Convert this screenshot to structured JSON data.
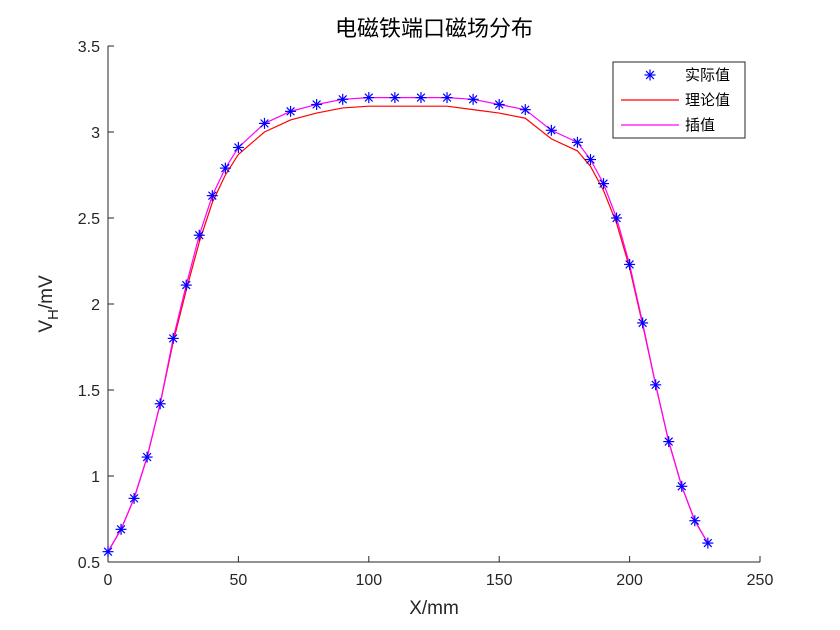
{
  "chart_data": {
    "type": "line",
    "title": "电磁铁端口磁场分布",
    "xlabel": "X/mm",
    "ylabel": "V",
    "ylabel_sub": "H",
    "ylabel_suffix": "/mV",
    "xlim": [
      0,
      250
    ],
    "ylim": [
      0.5,
      3.5
    ],
    "xticks": [
      0,
      50,
      100,
      150,
      200,
      250
    ],
    "yticks": [
      0.5,
      1,
      1.5,
      2,
      2.5,
      3,
      3.5
    ],
    "xtick_labels": [
      "0",
      "50",
      "100",
      "150",
      "200",
      "250"
    ],
    "ytick_labels": [
      "0.5",
      "1",
      "1.5",
      "2",
      "2.5",
      "3",
      "3.5"
    ],
    "grid": false,
    "legend_position": "top-right",
    "series": [
      {
        "name": "实际值",
        "style": "markers",
        "marker": "asterisk",
        "color": "#0000ff",
        "x": [
          0,
          5,
          10,
          15,
          20,
          25,
          30,
          35,
          40,
          45,
          50,
          60,
          70,
          80,
          90,
          100,
          110,
          120,
          130,
          140,
          150,
          160,
          170,
          180,
          185,
          190,
          195,
          200,
          205,
          210,
          215,
          220,
          225,
          230
        ],
        "y": [
          0.56,
          0.69,
          0.87,
          1.11,
          1.42,
          1.8,
          2.11,
          2.4,
          2.63,
          2.79,
          2.91,
          3.05,
          3.12,
          3.16,
          3.19,
          3.2,
          3.2,
          3.2,
          3.2,
          3.19,
          3.16,
          3.13,
          3.01,
          2.94,
          2.84,
          2.7,
          2.5,
          2.23,
          1.89,
          1.53,
          1.2,
          0.94,
          0.74,
          0.61
        ]
      },
      {
        "name": "理论值",
        "style": "line",
        "color": "#ff0000",
        "x": [
          0,
          5,
          10,
          15,
          20,
          25,
          30,
          35,
          40,
          45,
          50,
          60,
          70,
          80,
          90,
          100,
          110,
          120,
          130,
          140,
          150,
          160,
          170,
          180,
          185,
          190,
          195,
          200,
          205,
          210,
          215,
          220,
          225,
          230
        ],
        "y": [
          0.56,
          0.69,
          0.87,
          1.11,
          1.42,
          1.78,
          2.08,
          2.36,
          2.59,
          2.75,
          2.87,
          3.0,
          3.07,
          3.11,
          3.14,
          3.15,
          3.15,
          3.15,
          3.15,
          3.13,
          3.11,
          3.08,
          2.96,
          2.89,
          2.8,
          2.66,
          2.47,
          2.21,
          1.88,
          1.53,
          1.2,
          0.94,
          0.74,
          0.61
        ]
      },
      {
        "name": "插值",
        "style": "line",
        "color": "#ff00ff",
        "x": [
          0,
          5,
          10,
          15,
          20,
          25,
          30,
          35,
          40,
          45,
          50,
          60,
          70,
          80,
          90,
          100,
          110,
          120,
          130,
          140,
          150,
          160,
          170,
          180,
          185,
          190,
          195,
          200,
          205,
          210,
          215,
          220,
          225,
          230
        ],
        "y": [
          0.56,
          0.69,
          0.87,
          1.11,
          1.42,
          1.8,
          2.11,
          2.4,
          2.63,
          2.79,
          2.91,
          3.05,
          3.12,
          3.16,
          3.19,
          3.2,
          3.2,
          3.2,
          3.2,
          3.19,
          3.16,
          3.13,
          3.01,
          2.94,
          2.84,
          2.7,
          2.5,
          2.23,
          1.89,
          1.53,
          1.2,
          0.94,
          0.74,
          0.61
        ]
      }
    ]
  }
}
